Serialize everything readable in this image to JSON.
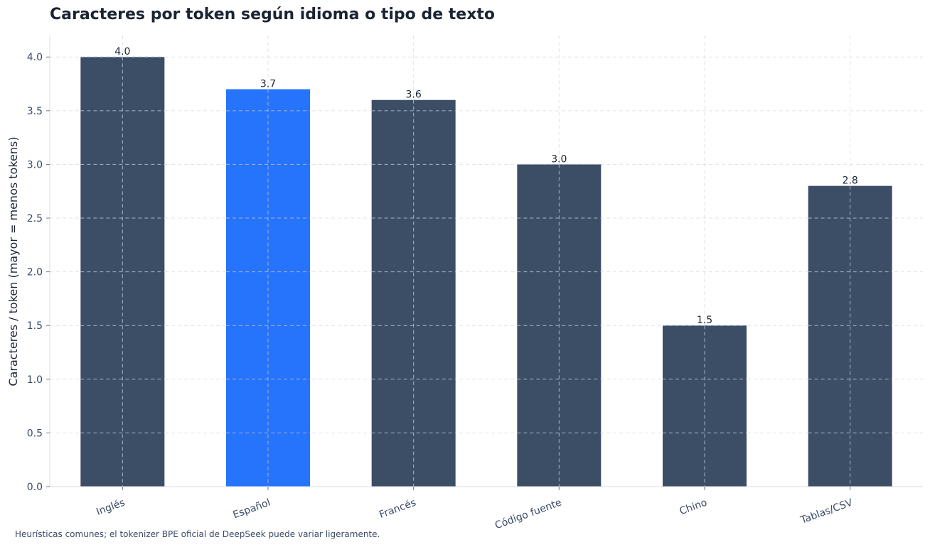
{
  "chart_data": {
    "type": "bar",
    "title": "Caracteres por token según idioma o tipo de texto",
    "xlabel": "",
    "ylabel": "Caracteres / token (mayor = menos tokens)",
    "categories": [
      "Inglés",
      "Español",
      "Francés",
      "Código fuente",
      "Chino",
      "Tablas/CSV"
    ],
    "values": [
      4.0,
      3.7,
      3.6,
      3.0,
      1.5,
      2.8
    ],
    "value_labels": [
      "4.0",
      "3.7",
      "3.6",
      "3.0",
      "1.5",
      "2.8"
    ],
    "highlight_index": 1,
    "ylim": [
      0,
      4.2
    ],
    "yticks": [
      0.0,
      0.5,
      1.0,
      1.5,
      2.0,
      2.5,
      3.0,
      3.5,
      4.0
    ],
    "ytick_labels": [
      "0.0",
      "0.5",
      "1.0",
      "1.5",
      "2.0",
      "2.5",
      "3.0",
      "3.5",
      "4.0"
    ],
    "grid": true,
    "colors": {
      "bar": "#3b4e66",
      "highlight": "#2673fc",
      "grid": "#c8ccd4",
      "gridOnBar": "#a9b4c6"
    }
  },
  "footnote": "Heurísticas comunes; el tokenizer BPE oficial de DeepSeek puede variar ligeramente."
}
